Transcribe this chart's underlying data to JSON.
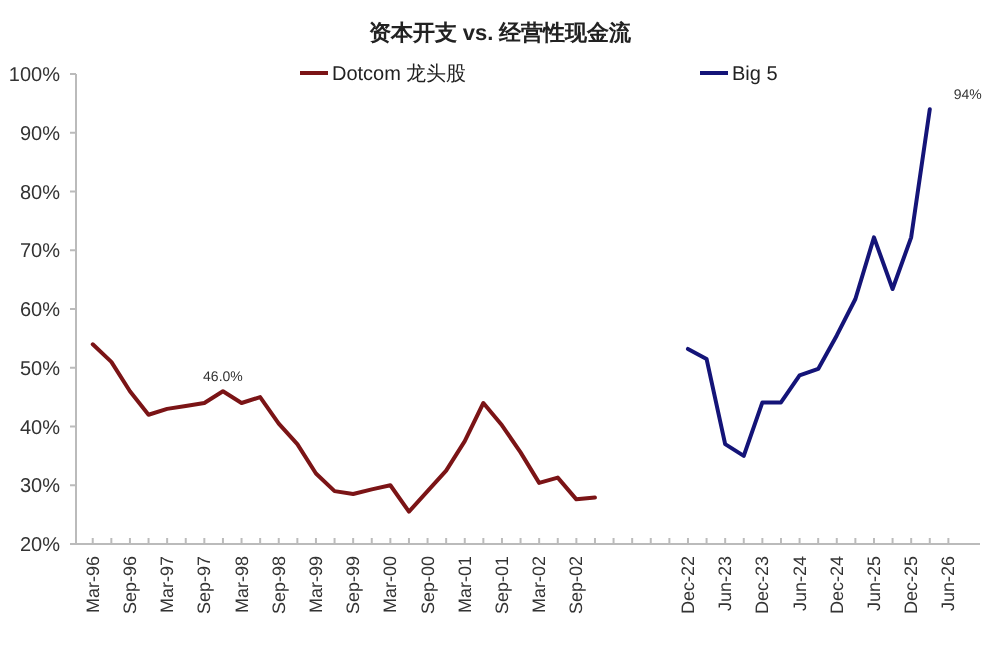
{
  "chart_data": {
    "type": "line",
    "title": "资本开支 vs. 经营性现金流",
    "categories": [
      "Mar-96",
      null,
      "Sep-96",
      null,
      "Mar-97",
      null,
      "Sep-97",
      null,
      "Mar-98",
      null,
      "Sep-98",
      null,
      "Mar-99",
      null,
      "Sep-99",
      null,
      "Mar-00",
      null,
      "Sep-00",
      null,
      "Mar-01",
      null,
      "Sep-01",
      null,
      "Mar-02",
      null,
      "Sep-02",
      null,
      null,
      null,
      null,
      null,
      "Dec-22",
      null,
      "Jun-23",
      null,
      "Dec-23",
      null,
      "Jun-24",
      null,
      "Dec-24",
      null,
      "Jun-25",
      null,
      "Dec-25",
      null,
      "Jun-26"
    ],
    "series": [
      {
        "name": "Dotcom 龙头股",
        "color": "#7b1416",
        "values": [
          54,
          51,
          46,
          42,
          43,
          43.5,
          44,
          46,
          44,
          45,
          40.5,
          37,
          32,
          29,
          28.5,
          29.3,
          30,
          25.5,
          29,
          32.5,
          37.5,
          44,
          40.2,
          35.6,
          30.4,
          31.3,
          27.6,
          27.9,
          null,
          null,
          null,
          null,
          null,
          null,
          null,
          null,
          null,
          null,
          null,
          null,
          null,
          null,
          null,
          null,
          null,
          null,
          null
        ],
        "value_labels": [
          null,
          null,
          null,
          null,
          null,
          null,
          null,
          "46.0%",
          null,
          null,
          null,
          null,
          null,
          null,
          null,
          null,
          null,
          null,
          null,
          null,
          null,
          null,
          null,
          null,
          null,
          null,
          null,
          null,
          null,
          null,
          null,
          null,
          null,
          null,
          null,
          null,
          null,
          null,
          null,
          null,
          null,
          null,
          null,
          null,
          null,
          null,
          null
        ]
      },
      {
        "name": "Big 5",
        "color": "#141478",
        "values": [
          null,
          null,
          null,
          null,
          null,
          null,
          null,
          null,
          null,
          null,
          null,
          null,
          null,
          null,
          null,
          null,
          null,
          null,
          null,
          null,
          null,
          null,
          null,
          null,
          null,
          null,
          null,
          null,
          null,
          null,
          null,
          null,
          53.2,
          51.5,
          37,
          35,
          44.1,
          44.1,
          48.7,
          49.8,
          55.5,
          61.7,
          72.2,
          63.4,
          72.2,
          94,
          null
        ],
        "value_labels": [
          null,
          null,
          null,
          null,
          null,
          null,
          null,
          null,
          null,
          null,
          null,
          null,
          null,
          null,
          null,
          null,
          null,
          null,
          null,
          null,
          null,
          null,
          null,
          null,
          null,
          null,
          null,
          null,
          null,
          null,
          null,
          null,
          null,
          null,
          null,
          null,
          null,
          null,
          null,
          null,
          null,
          null,
          null,
          null,
          null,
          "94%",
          null
        ]
      }
    ],
    "ylim": [
      20,
      100
    ],
    "yticks": [
      {
        "value": 20,
        "label": "20%"
      },
      {
        "value": 30,
        "label": "30%"
      },
      {
        "value": 40,
        "label": "40%"
      },
      {
        "value": 50,
        "label": "50%"
      },
      {
        "value": 60,
        "label": "60%"
      },
      {
        "value": 70,
        "label": "70%"
      },
      {
        "value": 80,
        "label": "80%"
      },
      {
        "value": 90,
        "label": "90%"
      },
      {
        "value": 100,
        "label": "100%"
      }
    ],
    "legend": "top"
  }
}
